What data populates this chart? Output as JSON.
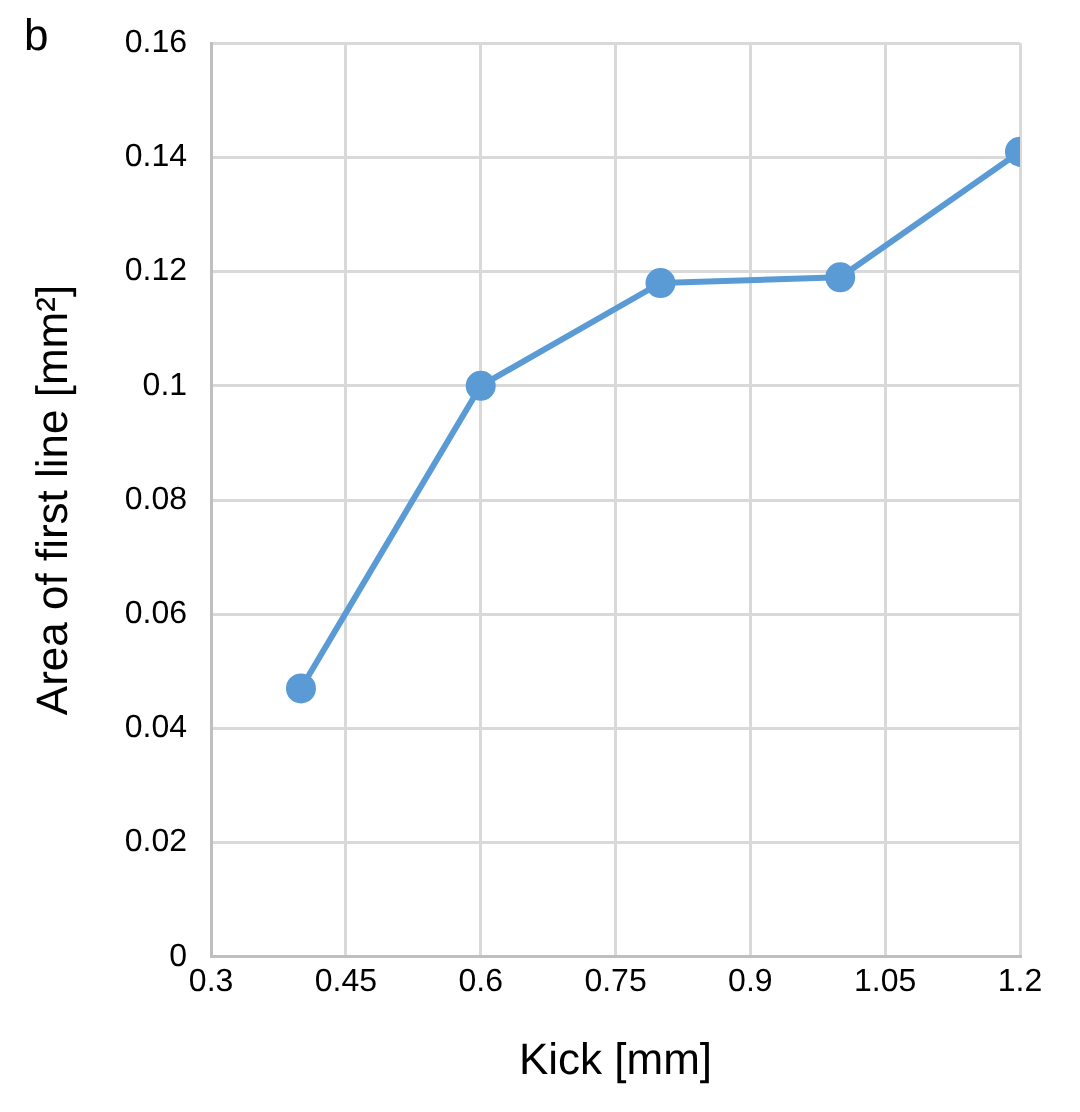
{
  "chart_data": {
    "type": "line",
    "xlabel": "Kick [mm]",
    "ylabel": "Area of first line [mm²]",
    "annotations": [
      "b"
    ],
    "x": [
      0.4,
      0.6,
      0.8,
      1.0,
      1.2
    ],
    "series": [
      {
        "color": "#5b9bd5",
        "values": [
          0.047,
          0.1,
          0.118,
          0.119,
          0.141
        ]
      }
    ],
    "xlim": [
      0.3,
      1.2
    ],
    "xticks": [
      0.3,
      0.45,
      0.6,
      0.75,
      0.9,
      1.05,
      1.2
    ],
    "ylim": [
      0,
      0.16
    ],
    "yticks": [
      0,
      0.02,
      0.04,
      0.06,
      0.08,
      0.1,
      0.12,
      0.14,
      0.16
    ],
    "grid": true,
    "marker": "circle",
    "line_style": "solid"
  }
}
